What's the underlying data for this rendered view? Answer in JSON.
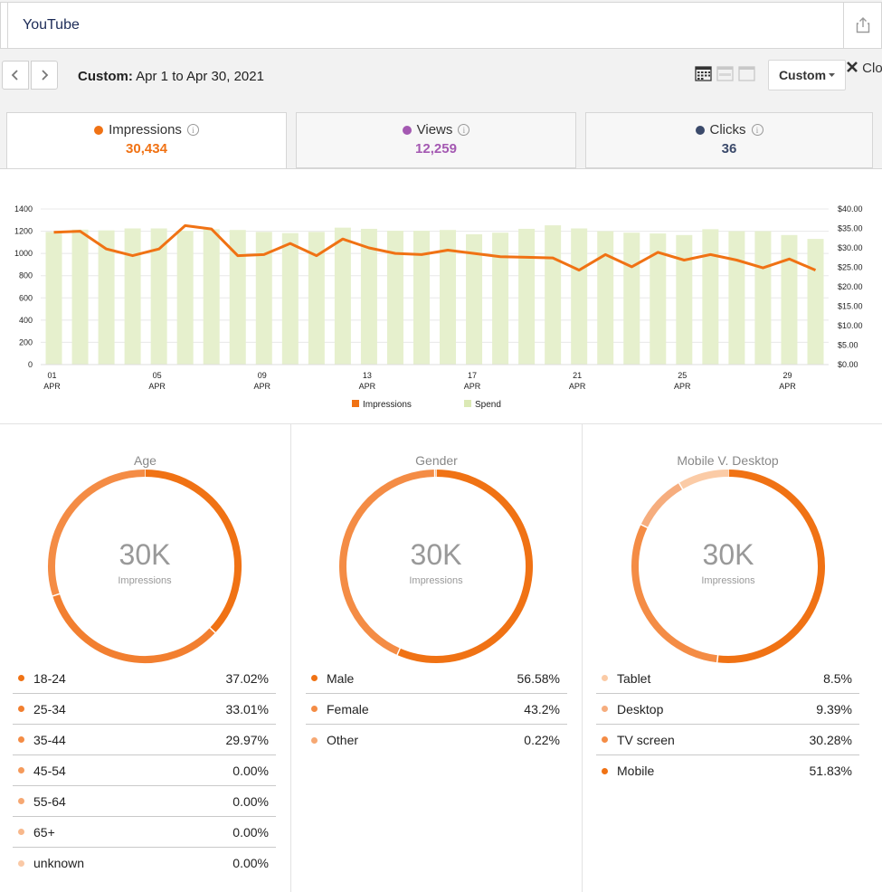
{
  "header": {
    "title": "YouTube",
    "share_icon": "share-icon"
  },
  "date_bar": {
    "prefix": "Custom:",
    "range": " Apr 1 to Apr 30, 2021",
    "custom_label": "Custom",
    "close_label": "Clo"
  },
  "metrics": [
    {
      "label": "Impressions",
      "value": "30,434",
      "color": "#f07214"
    },
    {
      "label": "Views",
      "value": "12,259",
      "color": "#a459b2"
    },
    {
      "label": "Clicks",
      "value": "36",
      "color": "#3b4a6b"
    }
  ],
  "chart_data": {
    "type": "bar+line",
    "left_ticks": [
      "0",
      "200",
      "400",
      "600",
      "800",
      "1000",
      "1200",
      "1400"
    ],
    "right_ticks": [
      "$0.00",
      "$5.00",
      "$10.00",
      "$15.00",
      "$20.00",
      "$25.00",
      "$30.00",
      "$35.00",
      "$40.00"
    ],
    "x_ticks": [
      {
        "day": "01",
        "month": "APR",
        "index": 0
      },
      {
        "day": "05",
        "month": "APR",
        "index": 4
      },
      {
        "day": "09",
        "month": "APR",
        "index": 8
      },
      {
        "day": "13",
        "month": "APR",
        "index": 12
      },
      {
        "day": "17",
        "month": "APR",
        "index": 16
      },
      {
        "day": "21",
        "month": "APR",
        "index": 20
      },
      {
        "day": "25",
        "month": "APR",
        "index": 24
      },
      {
        "day": "29",
        "month": "APR",
        "index": 28
      }
    ],
    "ylim_left": [
      0,
      1400
    ],
    "ylim_right": [
      0,
      40
    ],
    "series": [
      {
        "name": "Impressions",
        "kind": "line",
        "axis": "left",
        "color": "#f07214",
        "values": [
          1190,
          1200,
          1040,
          980,
          1040,
          1250,
          1220,
          980,
          990,
          1090,
          980,
          1130,
          1050,
          1000,
          990,
          1030,
          1000,
          970,
          965,
          960,
          850,
          990,
          880,
          1010,
          940,
          990,
          940,
          870,
          950,
          850
        ]
      },
      {
        "name": "Spend",
        "kind": "bar",
        "axis": "right",
        "color": "#e6f0cd",
        "values": [
          34.1,
          34.7,
          34.5,
          35.0,
          35.0,
          34.4,
          34.8,
          34.6,
          34.1,
          33.8,
          34.1,
          35.2,
          34.9,
          34.4,
          34.4,
          34.6,
          33.5,
          33.9,
          34.9,
          35.8,
          35.0,
          34.3,
          33.9,
          33.7,
          33.3,
          34.8,
          34.3,
          34.3,
          33.3,
          32.3
        ]
      }
    ],
    "legend": [
      "Impressions",
      "Spend"
    ],
    "legend_position": "bottom"
  },
  "donut_center": {
    "value": "30K",
    "label": "Impressions"
  },
  "donuts": [
    {
      "title": "Age",
      "items": [
        {
          "label": "18-24",
          "value": "37.02%",
          "pct": 37.02,
          "color": "#f07214"
        },
        {
          "label": "25-34",
          "value": "33.01%",
          "pct": 33.01,
          "color": "#f27f30"
        },
        {
          "label": "35-44",
          "value": "29.97%",
          "pct": 29.97,
          "color": "#f48c45"
        },
        {
          "label": "45-54",
          "value": "0.00%",
          "pct": 0,
          "color": "#f59a5b"
        },
        {
          "label": "55-64",
          "value": "0.00%",
          "pct": 0,
          "color": "#f6a873"
        },
        {
          "label": "65+",
          "value": "0.00%",
          "pct": 0,
          "color": "#f8b88c"
        },
        {
          "label": "unknown",
          "value": "0.00%",
          "pct": 0,
          "color": "#fac9a6"
        }
      ]
    },
    {
      "title": "Gender",
      "items": [
        {
          "label": "Male",
          "value": "56.58%",
          "pct": 56.58,
          "color": "#f07214"
        },
        {
          "label": "Female",
          "value": "43.2%",
          "pct": 43.2,
          "color": "#f48c45"
        },
        {
          "label": "Other",
          "value": "0.22%",
          "pct": 0.22,
          "color": "#f6a873"
        }
      ]
    },
    {
      "title": "Mobile V. Desktop",
      "items": [
        {
          "label": "Tablet",
          "value": "8.5%",
          "pct": 8.5,
          "color": "#fbcba6"
        },
        {
          "label": "Desktop",
          "value": "9.39%",
          "pct": 9.39,
          "color": "#f6ad7e"
        },
        {
          "label": "TV screen",
          "value": "30.28%",
          "pct": 30.28,
          "color": "#f48c45"
        },
        {
          "label": "Mobile",
          "value": "51.83%",
          "pct": 51.83,
          "color": "#f07214"
        }
      ],
      "ring_order": [
        3,
        2,
        1,
        0
      ]
    }
  ]
}
